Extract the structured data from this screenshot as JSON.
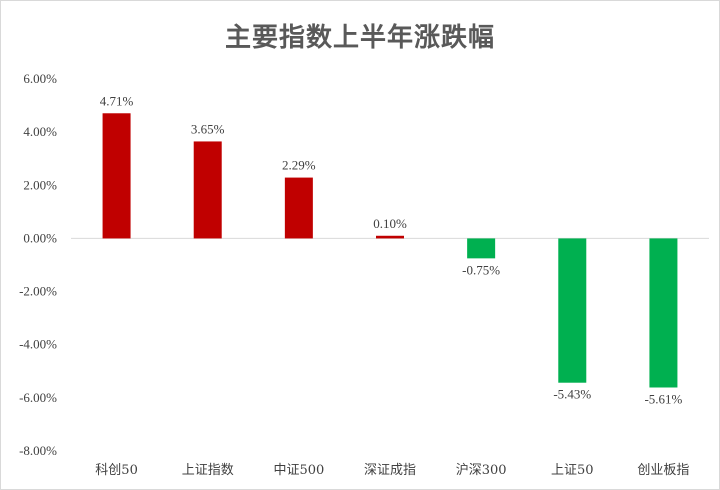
{
  "chart_data": {
    "type": "bar",
    "title": "主要指数上半年涨跌幅",
    "categories": [
      "科创50",
      "上证指数",
      "中证500",
      "深证成指",
      "沪深300",
      "上证50",
      "创业板指"
    ],
    "values": [
      4.71,
      3.65,
      2.29,
      0.1,
      -0.75,
      -5.43,
      -5.61
    ],
    "value_labels": [
      "4.71%",
      "3.65%",
      "2.29%",
      "0.10%",
      "-0.75%",
      "-5.43%",
      "-5.61%"
    ],
    "ylim": [
      -8,
      6
    ],
    "yticks": [
      6,
      4,
      2,
      0,
      -2,
      -4,
      -6,
      -8
    ],
    "ytick_labels": [
      "6.00%",
      "4.00%",
      "2.00%",
      "0.00%",
      "-2.00%",
      "-4.00%",
      "-6.00%",
      "-8.00%"
    ],
    "colors": {
      "positive": "#c00000",
      "negative": "#00b050",
      "axis": "#d9d9d9"
    },
    "grid": false,
    "legend": "none"
  }
}
